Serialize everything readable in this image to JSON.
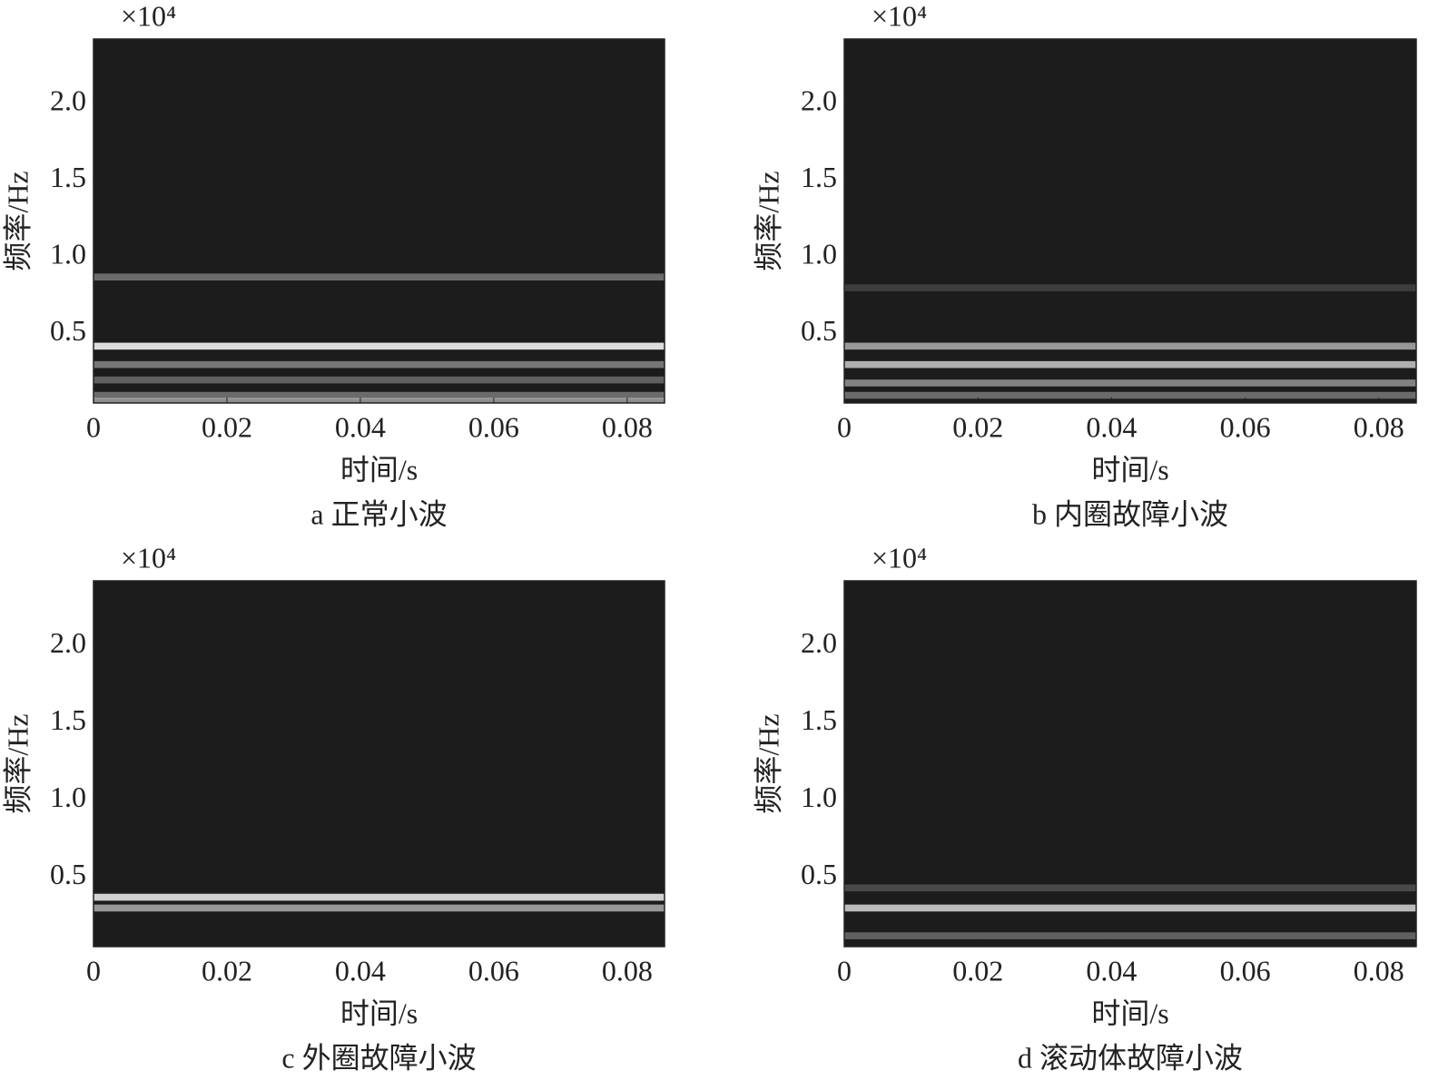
{
  "chart_data": [
    {
      "type": "spectrogram",
      "caption": "a 正常小波",
      "xlabel": "时间/s",
      "ylabel": "频率/Hz",
      "y_scale_label": "×10⁴",
      "xlim": [
        0,
        0.0856
      ],
      "xticks": [
        0,
        0.02,
        0.04,
        0.06,
        0.08
      ],
      "ylim": [
        0.05,
        2.42
      ],
      "yticks": [
        0.5,
        {
          "value": 1,
          "label": "1.0"
        },
        1.5,
        {
          "value": 2,
          "label": "2.0"
        }
      ],
      "background": "#1c1c1c",
      "band_color": "#ffffff",
      "band_frequencies": [
        0.87,
        0.42,
        0.3,
        0.2,
        0.1,
        0.06
      ],
      "band_intensities": [
        0.35,
        0.85,
        0.4,
        0.3,
        0.35,
        0.5
      ]
    },
    {
      "type": "spectrogram",
      "caption": "b 内圈故障小波",
      "xlabel": "时间/s",
      "ylabel": "频率/Hz",
      "y_scale_label": "×10⁴",
      "xlim": [
        0,
        0.0856
      ],
      "xticks": [
        0,
        0.02,
        0.04,
        0.06,
        0.08
      ],
      "ylim": [
        0.05,
        2.42
      ],
      "yticks": [
        0.5,
        {
          "value": 1,
          "label": "1.0"
        },
        1.5,
        {
          "value": 2,
          "label": "2.0"
        }
      ],
      "background": "#1c1c1c",
      "band_color": "#ffffff",
      "band_frequencies": [
        0.8,
        0.42,
        0.3,
        0.18,
        0.1
      ],
      "band_intensities": [
        0.15,
        0.55,
        0.65,
        0.45,
        0.35
      ]
    },
    {
      "type": "spectrogram",
      "caption": "c 外圈故障小波",
      "xlabel": "时间/s",
      "ylabel": "频率/Hz",
      "y_scale_label": "×10⁴",
      "xlim": [
        0,
        0.0856
      ],
      "xticks": [
        0,
        0.02,
        0.04,
        0.06,
        0.08
      ],
      "ylim": [
        0.05,
        2.42
      ],
      "yticks": [
        0.5,
        {
          "value": 1,
          "label": "1.0"
        },
        1.5,
        {
          "value": 2,
          "label": "2.0"
        }
      ],
      "background": "#1c1c1c",
      "band_color": "#ffffff",
      "band_frequencies": [
        0.37,
        0.3
      ],
      "band_intensities": [
        0.8,
        0.55
      ]
    },
    {
      "type": "spectrogram",
      "caption": "d 滚动体故障小波",
      "xlabel": "时间/s",
      "ylabel": "频率/Hz",
      "y_scale_label": "×10⁴",
      "xlim": [
        0,
        0.0856
      ],
      "xticks": [
        0,
        0.02,
        0.04,
        0.06,
        0.08
      ],
      "ylim": [
        0.05,
        2.42
      ],
      "yticks": [
        0.5,
        {
          "value": 1,
          "label": "1.0"
        },
        1.5,
        {
          "value": 2,
          "label": "2.0"
        }
      ],
      "background": "#1c1c1c",
      "band_color": "#ffffff",
      "band_frequencies": [
        0.43,
        0.3,
        0.12
      ],
      "band_intensities": [
        0.2,
        0.7,
        0.3
      ]
    }
  ]
}
